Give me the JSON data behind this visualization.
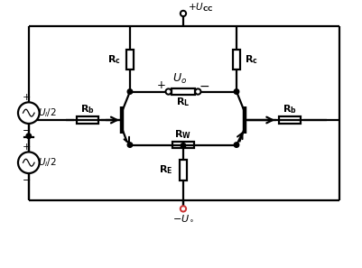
{
  "bg_color": "#ffffff",
  "line_color": "#000000",
  "line_width": 1.6,
  "fig_width": 4.02,
  "fig_height": 2.97,
  "dpi": 100,
  "ucc_label": "+$U_{\\mathrm{CC}}$",
  "uo_label": "$U_o$",
  "rb_label": "$\\mathbf{R_b}$",
  "rc_label": "$\\mathbf{R_c}$",
  "rl_label": "$\\mathbf{R_L}$",
  "rw_label": "$\\mathbf{R_W}$",
  "re_label": "$\\mathbf{R_E}$",
  "ui1_label": "$U_i/2$",
  "ui2_label": "$U_i/2$",
  "uminus_label": "$-U_\\circ$",
  "plus_sign": "+",
  "minus_sign": "−"
}
